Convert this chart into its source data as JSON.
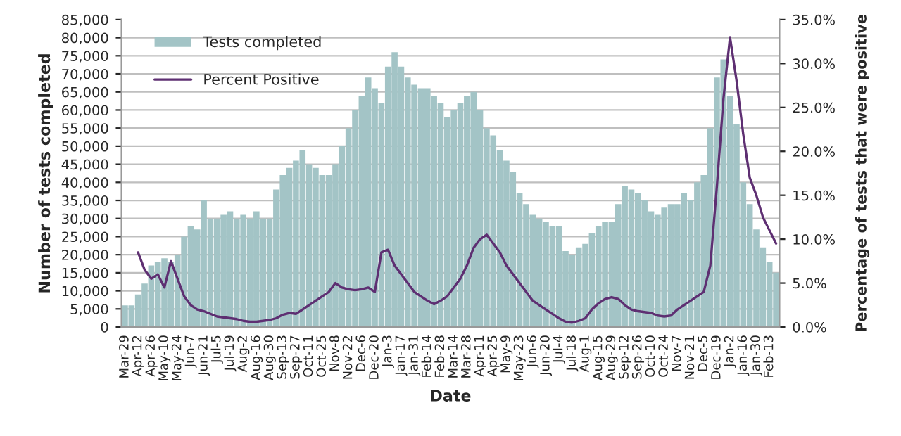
{
  "chart_data": {
    "type": "bar",
    "xlabel": "Date",
    "ylabel": "Number of tests completed",
    "y2label": "Percentage of tests that were positive",
    "categories": [
      "Mar-29",
      null,
      "Apr-12",
      null,
      "Apr-26",
      null,
      "May-10",
      null,
      "May-24",
      null,
      "Jun-7",
      null,
      "Jun-21",
      null,
      "Jul-5",
      null,
      "Jul-19",
      null,
      "Aug-2",
      null,
      "Aug-16",
      null,
      "Aug-30",
      null,
      "Sep-13",
      null,
      "Sep-27",
      null,
      "Oct-11",
      null,
      "Oct-25",
      null,
      "Nov-8",
      null,
      "Nov-22",
      null,
      "Dec-6",
      null,
      "Dec-20",
      null,
      "Jan-3",
      null,
      "Jan-17",
      null,
      "Jan-31",
      null,
      "Feb-14",
      null,
      "Feb-28",
      null,
      "Mar-14",
      null,
      "Mar-28",
      null,
      "Apr-11",
      null,
      "Apr-25",
      null,
      "May-9",
      null,
      "May-23",
      null,
      "Jun-6",
      null,
      "Jun-20",
      null,
      "Jul-4",
      null,
      "Jul-18",
      null,
      "Aug-1",
      null,
      "Aug-15",
      null,
      "Aug-29",
      null,
      "Sep-12",
      null,
      "Sep-26",
      null,
      "Oct-10",
      null,
      "Oct-24",
      null,
      "Nov-7",
      null,
      "Nov-21",
      null,
      "Dec-5",
      null,
      "Dec-19",
      null,
      "Jan-2",
      null,
      "Jan-16",
      null,
      "Jan-30",
      null,
      "Feb-13",
      null
    ],
    "series": [
      {
        "name": "Tests completed",
        "color": "#a3c4c6",
        "values": [
          6000,
          6000,
          9000,
          12000,
          17000,
          18000,
          19000,
          18000,
          20000,
          25000,
          28000,
          27000,
          35000,
          30000,
          30000,
          31000,
          32000,
          30000,
          31000,
          30000,
          32000,
          30000,
          30000,
          38000,
          42000,
          44000,
          46000,
          49000,
          45000,
          44000,
          42000,
          42000,
          45000,
          50000,
          55000,
          60000,
          64000,
          69000,
          66000,
          62000,
          72000,
          76000,
          72000,
          69000,
          67000,
          66000,
          66000,
          64000,
          62000,
          58000,
          60000,
          62000,
          64000,
          65000,
          60000,
          55000,
          53000,
          49000,
          46000,
          43000,
          37000,
          34000,
          31000,
          30000,
          29000,
          28000,
          28000,
          21000,
          20000,
          22000,
          23000,
          26000,
          28000,
          29000,
          29000,
          34000,
          39000,
          38000,
          37000,
          35000,
          32000,
          31000,
          33000,
          34000,
          34000,
          37000,
          35000,
          40000,
          42000,
          55000,
          69000,
          74000,
          64000,
          56000,
          40000,
          34000,
          27000,
          22000,
          18000,
          15000
        ]
      },
      {
        "name": "Percent Positive",
        "type": "line",
        "axis": "y2",
        "color": "#5e2f72",
        "values": [
          null,
          null,
          8.5,
          6.5,
          5.5,
          6,
          4.5,
          7.5,
          5.5,
          3.5,
          2.5,
          2,
          1.8,
          1.5,
          1.2,
          1.1,
          1.0,
          0.9,
          0.7,
          0.6,
          0.6,
          0.7,
          0.8,
          1.0,
          1.4,
          1.6,
          1.5,
          2.0,
          2.5,
          3.0,
          3.5,
          4.0,
          5.0,
          4.5,
          4.3,
          4.2,
          4.3,
          4.5,
          4.0,
          8.5,
          8.8,
          7.0,
          6.0,
          5.0,
          4.0,
          3.5,
          3.0,
          2.6,
          3.0,
          3.5,
          4.5,
          5.5,
          7.0,
          9.0,
          10.0,
          10.5,
          9.5,
          8.5,
          7.0,
          6.0,
          5.0,
          4.0,
          3.0,
          2.5,
          2.0,
          1.5,
          1.0,
          0.6,
          0.5,
          0.7,
          1.0,
          2.0,
          2.7,
          3.2,
          3.4,
          3.2,
          2.5,
          2.0,
          1.8,
          1.7,
          1.6,
          1.3,
          1.2,
          1.3,
          2.0,
          2.5,
          3.0,
          3.5,
          4.0,
          7.0,
          16.0,
          26.0,
          33.0,
          28.0,
          22.0,
          17.0,
          15.0,
          12.5,
          11.0,
          9.5
        ]
      }
    ],
    "ylim": [
      0,
      85000
    ],
    "yticks": [
      0,
      {
        "value": 5000,
        "label": "5,000"
      },
      {
        "value": 10000,
        "label": "10,000"
      },
      {
        "value": 15000,
        "label": "15,000"
      },
      {
        "value": 20000,
        "label": "20,000"
      },
      {
        "value": 25000,
        "label": "25,000"
      },
      {
        "value": 30000,
        "label": "30,000"
      },
      {
        "value": 35000,
        "label": "35,000"
      },
      {
        "value": 40000,
        "label": "40,000"
      },
      {
        "value": 45000,
        "label": "45,000"
      },
      {
        "value": 50000,
        "label": "50,000"
      },
      {
        "value": 55000,
        "label": "55,000"
      },
      {
        "value": 60000,
        "label": "60,000"
      },
      {
        "value": 65000,
        "label": "65,000"
      },
      {
        "value": 70000,
        "label": "70,000"
      },
      {
        "value": 75000,
        "label": "75,000"
      },
      {
        "value": 80000,
        "label": "80,000"
      },
      {
        "value": 85000,
        "label": "85,000"
      }
    ],
    "y2lim": [
      0,
      35
    ],
    "y2ticks": [
      {
        "value": 0,
        "label": "0.0%"
      },
      {
        "value": 5,
        "label": "5.0%"
      },
      {
        "value": 10,
        "label": "10.0%"
      },
      {
        "value": 15,
        "label": "15.0%"
      },
      {
        "value": 20,
        "label": "20.0%"
      },
      {
        "value": 25,
        "label": "25.0%"
      },
      {
        "value": 30,
        "label": "30.0%"
      },
      {
        "value": 35,
        "label": "35.0%"
      }
    ],
    "grid": "y",
    "legend": "top left",
    "marker": "none",
    "line_style": "solid"
  }
}
